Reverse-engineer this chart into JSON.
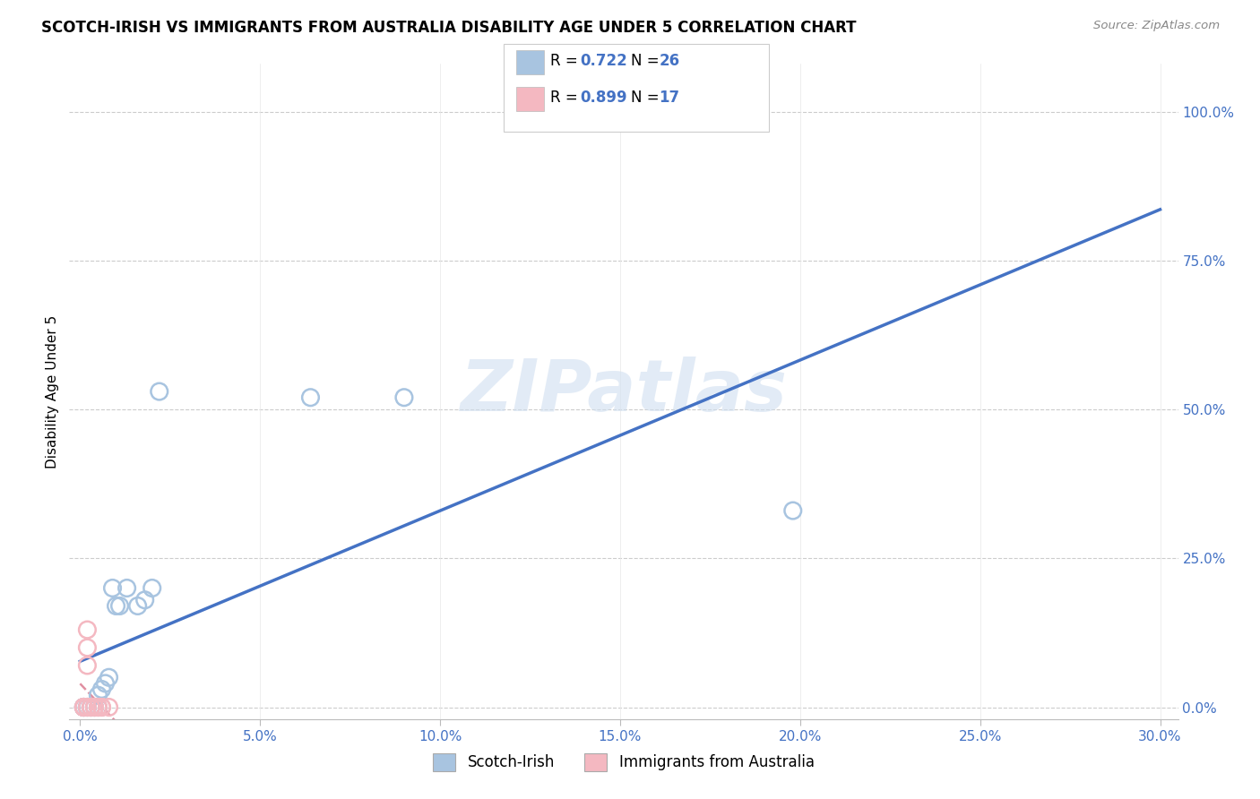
{
  "title": "SCOTCH-IRISH VS IMMIGRANTS FROM AUSTRALIA DISABILITY AGE UNDER 5 CORRELATION CHART",
  "source": "Source: ZipAtlas.com",
  "ylabel": "Disability Age Under 5",
  "x_tick_labels": [
    "0.0%",
    "5.0%",
    "10.0%",
    "15.0%",
    "20.0%",
    "25.0%",
    "30.0%"
  ],
  "y_tick_labels": [
    "0.0%",
    "25.0%",
    "50.0%",
    "75.0%",
    "100.0%"
  ],
  "xlim": [
    -0.003,
    0.305
  ],
  "ylim": [
    -0.02,
    1.08
  ],
  "legend1_label": "Scotch-Irish",
  "legend2_label": "Immigrants from Australia",
  "legend_R1": "0.722",
  "legend_N1": "26",
  "legend_R2": "0.899",
  "legend_N2": "17",
  "scotch_irish_x": [
    0.001,
    0.001,
    0.001,
    0.002,
    0.002,
    0.002,
    0.003,
    0.003,
    0.004,
    0.004,
    0.005,
    0.005,
    0.006,
    0.007,
    0.008,
    0.009,
    0.01,
    0.011,
    0.013,
    0.016,
    0.018,
    0.02,
    0.022,
    0.064,
    0.09,
    0.198
  ],
  "scotch_irish_y": [
    0.0,
    0.0,
    0.0,
    0.0,
    0.0,
    0.0,
    0.0,
    0.0,
    0.0,
    0.0,
    0.0,
    0.02,
    0.03,
    0.04,
    0.05,
    0.2,
    0.17,
    0.17,
    0.2,
    0.17,
    0.18,
    0.2,
    0.53,
    0.52,
    0.52,
    0.33
  ],
  "australia_x": [
    0.001,
    0.001,
    0.001,
    0.002,
    0.002,
    0.002,
    0.002,
    0.003,
    0.003,
    0.003,
    0.004,
    0.004,
    0.005,
    0.005,
    0.006,
    0.006,
    0.008
  ],
  "australia_y": [
    0.0,
    0.0,
    0.0,
    0.0,
    0.07,
    0.1,
    0.13,
    0.0,
    0.0,
    0.0,
    0.0,
    0.0,
    0.0,
    0.0,
    0.0,
    0.0,
    0.0
  ],
  "scotch_color": "#a8c4e0",
  "scotch_edge_color": "#7aaed0",
  "scotch_line_color": "#4472c4",
  "australia_color": "#f4b8c1",
  "australia_edge_color": "#e89aaa",
  "australia_line_color": "#d4607a",
  "watermark": "ZIPatlas",
  "grid_color": "#e0e0e0",
  "grid_dash_color": "#cccccc",
  "background_color": "#ffffff"
}
